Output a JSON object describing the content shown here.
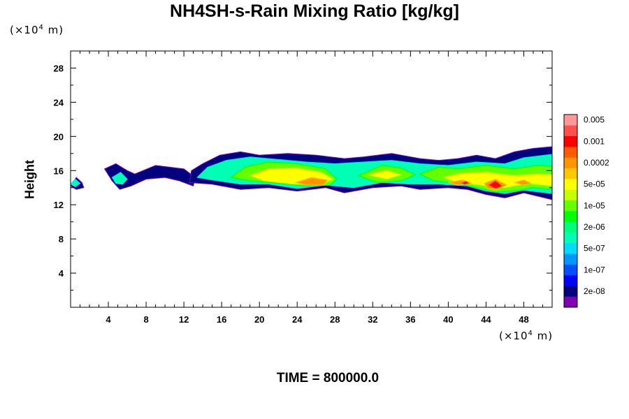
{
  "chart_data": {
    "type": "heatmap",
    "title": "NH4SH-s-Rain Mixing Ratio [kg/kg]",
    "ylabel": "Height",
    "x_unit": {
      "prefix": "(×10",
      "exp": "4",
      "suffix": " m)"
    },
    "y_unit": {
      "prefix": "(×10",
      "exp": "4",
      "suffix": " m)"
    },
    "xlim": [
      0,
      51
    ],
    "ylim": [
      0,
      30
    ],
    "xticks": [
      4,
      8,
      12,
      16,
      20,
      24,
      28,
      32,
      36,
      40,
      44,
      48
    ],
    "yticks": [
      4,
      8,
      12,
      16,
      20,
      24,
      28
    ],
    "colorbar": {
      "colors": [
        "#7f00b2",
        "#00007f",
        "#0000ff",
        "#0050ff",
        "#0096ff",
        "#00dcff",
        "#00ffb4",
        "#00ff78",
        "#00ff00",
        "#64ff00",
        "#c8ff00",
        "#ffff00",
        "#ffc800",
        "#ff9600",
        "#ff5a00",
        "#ff0000",
        "#ff4f4f",
        "#ff9999"
      ],
      "labels": [
        "2e-08",
        "1e-07",
        "5e-07",
        "2e-06",
        "1e-05",
        "5e-05",
        "0.0002",
        "0.001",
        "0.005"
      ],
      "label_band_index": [
        1,
        3,
        5,
        7,
        9,
        11,
        13,
        15,
        17
      ]
    },
    "regions": [
      {
        "level": 1,
        "points": [
          [
            0,
            14.2
          ],
          [
            0.6,
            15.2
          ],
          [
            1.2,
            14.6
          ],
          [
            1.4,
            14.0
          ],
          [
            0.6,
            13.8
          ]
        ]
      },
      {
        "level": 1,
        "points": [
          [
            3.6,
            16.2
          ],
          [
            4.8,
            16.8
          ],
          [
            6.0,
            16.0
          ],
          [
            6.8,
            15.6
          ],
          [
            9.0,
            16.6
          ],
          [
            12.0,
            16.2
          ],
          [
            13.2,
            15.2
          ],
          [
            13.0,
            14.2
          ],
          [
            11.5,
            14.8
          ],
          [
            10.0,
            15.2
          ],
          [
            8.0,
            15.0
          ],
          [
            6.4,
            14.2
          ],
          [
            5.2,
            13.8
          ],
          [
            4.4,
            14.8
          ]
        ]
      },
      {
        "level": 1,
        "points": [
          [
            12.6,
            14.6
          ],
          [
            12.8,
            16.0
          ],
          [
            14.0,
            16.8
          ],
          [
            15.8,
            17.8
          ],
          [
            18.0,
            18.2
          ],
          [
            20.0,
            17.8
          ],
          [
            23.0,
            18.0
          ],
          [
            26.0,
            17.8
          ],
          [
            29.0,
            17.4
          ],
          [
            31.0,
            17.6
          ],
          [
            34.0,
            18.0
          ],
          [
            37.0,
            17.4
          ],
          [
            39.0,
            17.2
          ],
          [
            41.0,
            17.4
          ],
          [
            43.0,
            17.8
          ],
          [
            45.0,
            17.4
          ],
          [
            47.0,
            18.2
          ],
          [
            49.0,
            18.6
          ],
          [
            51.0,
            18.8
          ],
          [
            51.0,
            12.6
          ],
          [
            48.0,
            13.4
          ],
          [
            46.0,
            12.8
          ],
          [
            44.0,
            13.2
          ],
          [
            42.0,
            13.8
          ],
          [
            40.0,
            14.0
          ],
          [
            37.0,
            13.8
          ],
          [
            35.0,
            14.2
          ],
          [
            32.0,
            14.0
          ],
          [
            29.0,
            13.4
          ],
          [
            27.0,
            14.0
          ],
          [
            24.0,
            13.6
          ],
          [
            21.0,
            14.0
          ],
          [
            18.0,
            13.8
          ],
          [
            15.0,
            14.4
          ]
        ]
      },
      {
        "level": 6,
        "points": [
          [
            0,
            14.4
          ],
          [
            0.5,
            15.0
          ],
          [
            1.0,
            14.5
          ],
          [
            0.5,
            14.1
          ]
        ]
      },
      {
        "level": 6,
        "points": [
          [
            4.4,
            15.2
          ],
          [
            5.3,
            15.8
          ],
          [
            6.0,
            15.0
          ],
          [
            5.5,
            14.4
          ],
          [
            4.8,
            14.5
          ]
        ]
      },
      {
        "level": 6,
        "points": [
          [
            13.4,
            15.2
          ],
          [
            14.5,
            16.4
          ],
          [
            16.5,
            17.2
          ],
          [
            19.0,
            17.6
          ],
          [
            22.0,
            17.3
          ],
          [
            25.0,
            17.0
          ],
          [
            28.0,
            16.8
          ],
          [
            31.0,
            17.0
          ],
          [
            34.0,
            17.2
          ],
          [
            37.0,
            16.8
          ],
          [
            40.0,
            16.6
          ],
          [
            43.0,
            17.0
          ],
          [
            46.0,
            16.8
          ],
          [
            48.0,
            17.5
          ],
          [
            51.0,
            17.9
          ],
          [
            51.0,
            13.3
          ],
          [
            48.0,
            13.7
          ],
          [
            46.0,
            13.3
          ],
          [
            44.0,
            13.6
          ],
          [
            42.0,
            14.2
          ],
          [
            39.0,
            14.4
          ],
          [
            36.0,
            14.4
          ],
          [
            33.0,
            14.6
          ],
          [
            30.0,
            14.0
          ],
          [
            27.0,
            14.3
          ],
          [
            24.0,
            13.9
          ],
          [
            21.0,
            14.4
          ],
          [
            18.0,
            14.4
          ],
          [
            15.0,
            14.9
          ]
        ]
      },
      {
        "level": 9,
        "points": [
          [
            17.0,
            15.2
          ],
          [
            18.5,
            16.4
          ],
          [
            21.0,
            17.0
          ],
          [
            24.0,
            16.8
          ],
          [
            27.0,
            16.2
          ],
          [
            28.2,
            15.0
          ],
          [
            27.5,
            14.3
          ],
          [
            25.0,
            14.2
          ],
          [
            22.0,
            14.5
          ],
          [
            19.0,
            14.8
          ]
        ]
      },
      {
        "level": 9,
        "points": [
          [
            30.5,
            15.4
          ],
          [
            33.0,
            16.6
          ],
          [
            35.0,
            16.3
          ],
          [
            36.5,
            15.5
          ],
          [
            35.0,
            14.8
          ],
          [
            32.5,
            14.6
          ]
        ]
      },
      {
        "level": 9,
        "points": [
          [
            37.0,
            15.6
          ],
          [
            39.0,
            16.4
          ],
          [
            41.0,
            16.2
          ],
          [
            44.0,
            16.6
          ],
          [
            47.0,
            16.2
          ],
          [
            49.5,
            16.6
          ],
          [
            51.0,
            16.5
          ],
          [
            51.0,
            13.8
          ],
          [
            49.0,
            14.0
          ],
          [
            47.0,
            13.6
          ],
          [
            45.0,
            13.5
          ],
          [
            43.0,
            14.0
          ],
          [
            41.0,
            14.5
          ],
          [
            38.5,
            14.8
          ]
        ]
      },
      {
        "level": 11,
        "points": [
          [
            19.0,
            15.4
          ],
          [
            21.0,
            16.2
          ],
          [
            24.0,
            16.3
          ],
          [
            26.5,
            15.8
          ],
          [
            27.8,
            15.0
          ],
          [
            26.5,
            14.4
          ],
          [
            23.5,
            14.4
          ],
          [
            20.5,
            14.8
          ]
        ]
      },
      {
        "level": 11,
        "points": [
          [
            39.5,
            15.2
          ],
          [
            41.5,
            15.7
          ],
          [
            44.0,
            15.8
          ],
          [
            47.0,
            15.4
          ],
          [
            49.5,
            15.6
          ],
          [
            51.0,
            15.5
          ],
          [
            51.0,
            14.2
          ],
          [
            48.5,
            14.5
          ],
          [
            46.0,
            14.0
          ],
          [
            43.5,
            14.3
          ],
          [
            41.0,
            14.6
          ]
        ]
      },
      {
        "level": 11,
        "points": [
          [
            31.5,
            15.5
          ],
          [
            33.5,
            16.0
          ],
          [
            35.0,
            15.5
          ],
          [
            33.5,
            15.0
          ]
        ]
      },
      {
        "level": 13,
        "points": [
          [
            23.8,
            14.6
          ],
          [
            25.5,
            15.2
          ],
          [
            27.2,
            14.9
          ],
          [
            26.8,
            14.3
          ],
          [
            25.0,
            14.3
          ]
        ]
      },
      {
        "level": 13,
        "points": [
          [
            40.0,
            14.6
          ],
          [
            41.5,
            14.9
          ],
          [
            42.5,
            14.5
          ],
          [
            41.0,
            14.3
          ]
        ]
      },
      {
        "level": 13,
        "points": [
          [
            43.8,
            14.5
          ],
          [
            45.0,
            15.0
          ],
          [
            46.2,
            14.3
          ],
          [
            45.2,
            13.8
          ],
          [
            44.2,
            13.9
          ]
        ]
      },
      {
        "level": 13,
        "points": [
          [
            47.0,
            14.6
          ],
          [
            48.0,
            14.9
          ],
          [
            48.8,
            14.5
          ],
          [
            47.9,
            14.3
          ]
        ]
      },
      {
        "level": 15,
        "points": [
          [
            44.3,
            14.3
          ],
          [
            45.0,
            14.8
          ],
          [
            45.7,
            14.2
          ],
          [
            45.0,
            13.9
          ]
        ]
      },
      {
        "level": 15,
        "points": [
          [
            41.4,
            14.55
          ],
          [
            41.9,
            14.75
          ],
          [
            42.2,
            14.5
          ],
          [
            41.7,
            14.4
          ]
        ]
      }
    ]
  },
  "time_label": "TIME = 800000.0"
}
